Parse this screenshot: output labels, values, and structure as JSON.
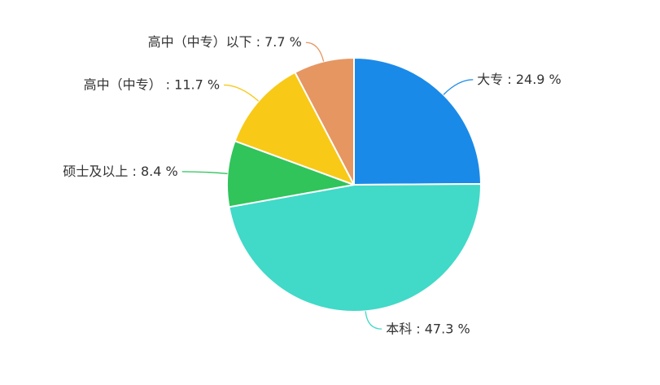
{
  "chart_data": {
    "type": "pie",
    "title": "",
    "start_angle_deg": 90,
    "direction": "clockwise",
    "legend": "none",
    "slices": [
      {
        "name": "大专",
        "value": 24.9,
        "label": "大专 : 24.9 %",
        "color": "#1a8ae8"
      },
      {
        "name": "本科",
        "value": 47.3,
        "label": "本科 : 47.3 %",
        "color": "#41d9c7"
      },
      {
        "name": "硕士及以上",
        "value": 8.4,
        "label": "硕士及以上 : 8.4 %",
        "color": "#30c45b"
      },
      {
        "name": "高中（中专）",
        "value": 11.7,
        "label": "高中（中专） : 11.7 %",
        "color": "#f8c917"
      },
      {
        "name": "高中（中专）以下",
        "value": 7.7,
        "label": "高中（中专）以下 : 7.7 %",
        "color": "#e69661"
      }
    ]
  }
}
